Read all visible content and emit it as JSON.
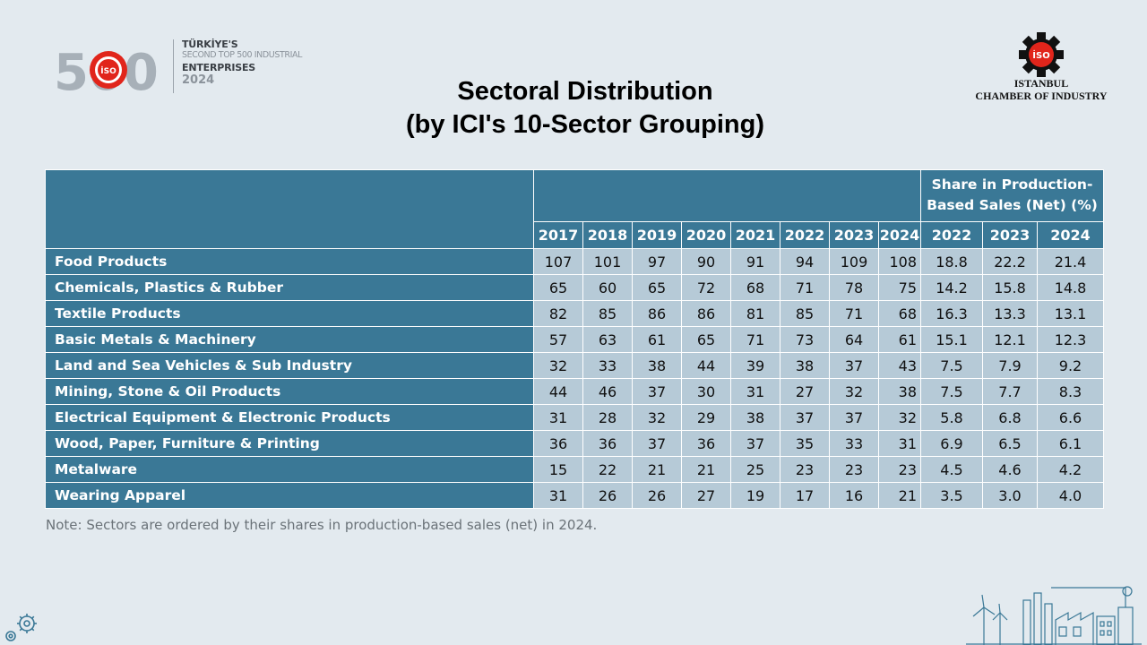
{
  "brand": {
    "number": "500",
    "badge": "İSO",
    "line1": "TÜRKİYE'S",
    "line2": "SECOND TOP 500 INDUSTRIAL",
    "line3": "ENTERPRISES",
    "line4": "2024"
  },
  "org": {
    "badge": "İSO",
    "line1": "ISTANBUL",
    "line2": "CHAMBER OF INDUSTRY"
  },
  "title": {
    "line1": "Sectoral Distribution",
    "line2": "(by ICI's 10-Sector Grouping)"
  },
  "table": {
    "share_header": "Share in Production-Based Sales (Net) (%)",
    "count_years": [
      "2017",
      "2018",
      "2019",
      "2020",
      "2021",
      "2022",
      "2023",
      "2024"
    ],
    "share_years": [
      "2022",
      "2023",
      "2024"
    ],
    "rows": [
      {
        "sector": "Food Products",
        "counts": [
          "107",
          "101",
          "97",
          "90",
          "91",
          "94",
          "109",
          "108"
        ],
        "shares": [
          "18.8",
          "22.2",
          "21.4"
        ]
      },
      {
        "sector": "Chemicals, Plastics & Rubber",
        "counts": [
          "65",
          "60",
          "65",
          "72",
          "68",
          "71",
          "78",
          "75"
        ],
        "shares": [
          "14.2",
          "15.8",
          "14.8"
        ]
      },
      {
        "sector": "Textile Products",
        "counts": [
          "82",
          "85",
          "86",
          "86",
          "81",
          "85",
          "71",
          "68"
        ],
        "shares": [
          "16.3",
          "13.3",
          "13.1"
        ]
      },
      {
        "sector": "Basic Metals & Machinery",
        "counts": [
          "57",
          "63",
          "61",
          "65",
          "71",
          "73",
          "64",
          "61"
        ],
        "shares": [
          "15.1",
          "12.1",
          "12.3"
        ]
      },
      {
        "sector": "Land and Sea Vehicles & Sub Industry",
        "counts": [
          "32",
          "33",
          "38",
          "44",
          "39",
          "38",
          "37",
          "43"
        ],
        "shares": [
          "7.5",
          "7.9",
          "9.2"
        ]
      },
      {
        "sector": "Mining, Stone & Oil Products",
        "counts": [
          "44",
          "46",
          "37",
          "30",
          "31",
          "27",
          "32",
          "38"
        ],
        "shares": [
          "7.5",
          "7.7",
          "8.3"
        ]
      },
      {
        "sector": "Electrical Equipment & Electronic Products",
        "counts": [
          "31",
          "28",
          "32",
          "29",
          "38",
          "37",
          "37",
          "32"
        ],
        "shares": [
          "5.8",
          "6.8",
          "6.6"
        ]
      },
      {
        "sector": "Wood, Paper, Furniture & Printing",
        "counts": [
          "36",
          "36",
          "37",
          "36",
          "37",
          "35",
          "33",
          "31"
        ],
        "shares": [
          "6.9",
          "6.5",
          "6.1"
        ]
      },
      {
        "sector": "Metalware",
        "counts": [
          "15",
          "22",
          "21",
          "21",
          "25",
          "23",
          "23",
          "23"
        ],
        "shares": [
          "4.5",
          "4.6",
          "4.2"
        ]
      },
      {
        "sector": "Wearing Apparel",
        "counts": [
          "31",
          "26",
          "26",
          "27",
          "19",
          "17",
          "16",
          "21"
        ],
        "shares": [
          "3.5",
          "3.0",
          "4.0"
        ]
      }
    ]
  },
  "note": "Note: Sectors are ordered by their shares in production-based sales (net) in 2024.",
  "colors": {
    "background": "#e3eaef",
    "header_fill": "#3a7896",
    "cell_fill": "#b6cad7",
    "brand_red": "#e1251b"
  },
  "icons": [
    "gear-icon",
    "factory-illustration"
  ]
}
